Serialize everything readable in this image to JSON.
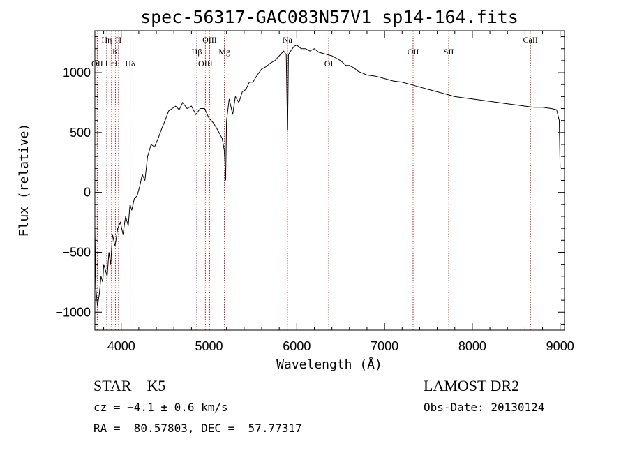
{
  "chart_data": {
    "type": "line",
    "title": "spec-56317-GAC083N57V1_sp14-164.fits",
    "xlabel": "Wavelength (Å)",
    "ylabel": "Flux (relative)",
    "xlim": [
      3700,
      9050
    ],
    "ylim": [
      -1150,
      1350
    ],
    "xticks": [
      4000,
      5000,
      6000,
      7000,
      8000,
      9000
    ],
    "yticks": [
      -1000,
      -500,
      0,
      500,
      1000
    ],
    "grid": false,
    "line_color": "#000000",
    "marker_color": "#b22222",
    "series": [
      {
        "x": [
          3700,
          3710,
          3730,
          3750,
          3770,
          3790,
          3800,
          3820,
          3840,
          3860,
          3880,
          3900,
          3930,
          3960,
          3990,
          4020,
          4050,
          4080,
          4100,
          4120,
          4150,
          4180,
          4210,
          4240,
          4270,
          4300,
          4340,
          4380,
          4420,
          4460,
          4500,
          4540,
          4580,
          4620,
          4660,
          4700,
          4750,
          4800,
          4850,
          4900,
          4950,
          5000,
          5050,
          5100,
          5150,
          5175,
          5190,
          5200,
          5230,
          5270,
          5300,
          5340,
          5380,
          5420,
          5460,
          5500,
          5550,
          5600,
          5650,
          5700,
          5750,
          5800,
          5850,
          5880,
          5890,
          5896,
          5905,
          5930,
          5970,
          6000,
          6050,
          6100,
          6150,
          6200,
          6250,
          6300,
          6350,
          6400,
          6450,
          6500,
          6560,
          6600,
          6650,
          6700,
          6800,
          6900,
          7000,
          7100,
          7200,
          7300,
          7400,
          7500,
          7600,
          7700,
          7800,
          7900,
          8000,
          8100,
          8200,
          8300,
          8400,
          8500,
          8600,
          8700,
          8800,
          8900,
          8960,
          8990,
          9000
        ],
        "y": [
          -300,
          -800,
          -950,
          -850,
          -700,
          -750,
          -600,
          -650,
          -700,
          -500,
          -600,
          -350,
          -450,
          -300,
          -250,
          -350,
          -200,
          -280,
          -100,
          -150,
          -50,
          -30,
          50,
          150,
          100,
          300,
          400,
          380,
          450,
          530,
          600,
          680,
          700,
          720,
          690,
          750,
          700,
          720,
          650,
          700,
          700,
          620,
          580,
          520,
          450,
          350,
          100,
          600,
          780,
          650,
          800,
          750,
          840,
          860,
          920,
          920,
          980,
          1030,
          1050,
          1080,
          1100,
          1140,
          1180,
          1150,
          700,
          520,
          1150,
          1180,
          1220,
          1230,
          1200,
          1200,
          1180,
          1200,
          1170,
          1160,
          1150,
          1140,
          1120,
          1100,
          1060,
          1060,
          1040,
          1010,
          980,
          970,
          950,
          930,
          920,
          900,
          880,
          860,
          840,
          820,
          800,
          790,
          780,
          770,
          760,
          750,
          740,
          730,
          720,
          710,
          710,
          700,
          690,
          600,
          200
        ]
      }
    ],
    "line_markers": [
      {
        "label": "OII",
        "x": 3727,
        "row": 3
      },
      {
        "label": "Hη",
        "x": 3835,
        "row": 1
      },
      {
        "label": "HeI",
        "x": 3889,
        "row": 3
      },
      {
        "label": "K",
        "x": 3934,
        "row": 2
      },
      {
        "label": "H",
        "x": 3969,
        "row": 1
      },
      {
        "label": "Hδ",
        "x": 4102,
        "row": 3
      },
      {
        "label": "Hβ",
        "x": 4861,
        "row": 2
      },
      {
        "label": "OIII",
        "x": 4959,
        "row": 3
      },
      {
        "label": "OIII",
        "x": 5007,
        "row": 1
      },
      {
        "label": "Mg",
        "x": 5175,
        "row": 2
      },
      {
        "label": "Na",
        "x": 5893,
        "row": 1
      },
      {
        "label": "OI",
        "x": 6364,
        "row": 3
      },
      {
        "label": "OII",
        "x": 7325,
        "row": 2
      },
      {
        "label": "SII",
        "x": 7731,
        "row": 2
      },
      {
        "label": "CaII",
        "x": 8662,
        "row": 1
      }
    ]
  },
  "info": {
    "class_line": "STAR    K5",
    "survey": "LAMOST DR2",
    "cz_line": "cz = −4.1 ± 0.6 km/s",
    "obs_date": "Obs-Date: 20130124",
    "coords_line": "RA =  80.57803, DEC =  57.77317"
  }
}
